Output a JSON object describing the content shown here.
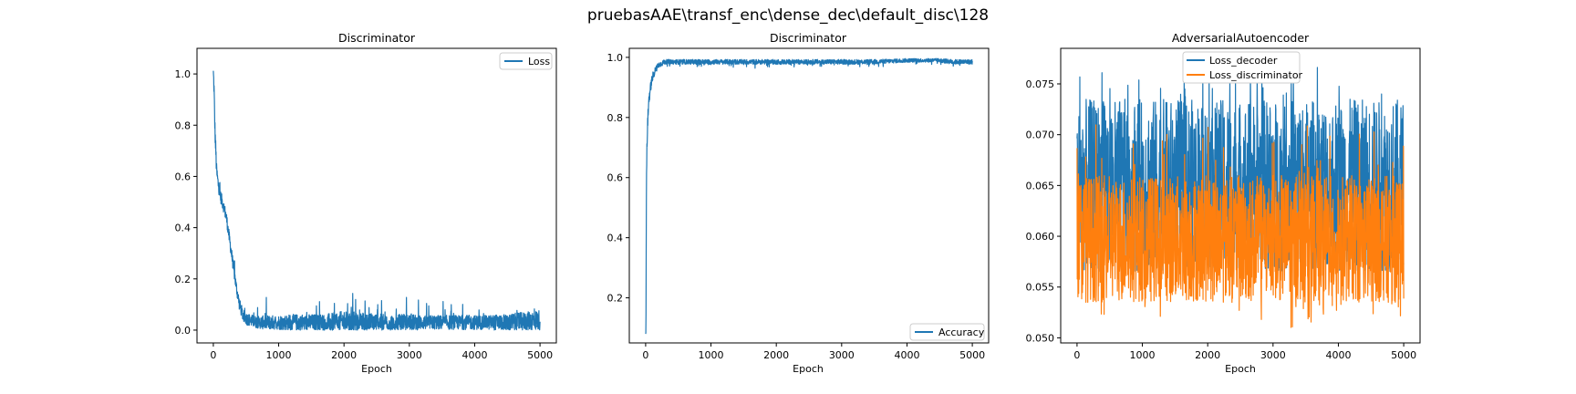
{
  "figure": {
    "suptitle": "pruebasAAE\\transf_enc\\dense_dec\\default_disc\\128"
  },
  "chart_data": [
    {
      "type": "line",
      "title": "Discriminator",
      "xlabel": "Epoch",
      "ylabel": "",
      "xlim": [
        -250,
        5250
      ],
      "ylim": [
        -0.05,
        1.1
      ],
      "xticks": [
        0,
        1000,
        2000,
        3000,
        4000,
        5000
      ],
      "yticks": [
        0.0,
        0.2,
        0.4,
        0.6,
        0.8,
        1.0
      ],
      "legend_position": "upper right",
      "grid": false,
      "series": [
        {
          "name": "Loss",
          "color": "#1f77b4",
          "x": [
            0,
            10,
            25,
            50,
            75,
            100,
            150,
            200,
            250,
            300,
            350,
            400,
            450,
            500,
            600,
            700,
            800,
            900,
            1000,
            1200,
            1400,
            1600,
            1800,
            2000,
            2200,
            2400,
            2600,
            2800,
            3000,
            3200,
            3400,
            3600,
            3800,
            4000,
            4200,
            4400,
            4600,
            4800,
            5000
          ],
          "y": [
            1.0,
            0.95,
            0.78,
            0.62,
            0.57,
            0.53,
            0.49,
            0.44,
            0.35,
            0.26,
            0.17,
            0.1,
            0.06,
            0.045,
            0.035,
            0.03,
            0.03,
            0.03,
            0.03,
            0.03,
            0.03,
            0.03,
            0.03,
            0.035,
            0.03,
            0.03,
            0.03,
            0.03,
            0.03,
            0.03,
            0.03,
            0.03,
            0.03,
            0.03,
            0.03,
            0.03,
            0.03,
            0.035,
            0.04
          ],
          "spread": [
            0.05,
            0.05,
            0.05,
            0.04,
            0.03,
            0.03,
            0.03,
            0.03,
            0.03,
            0.03,
            0.03,
            0.03,
            0.03,
            0.03,
            0.03,
            0.03,
            0.035,
            0.035,
            0.035,
            0.04,
            0.04,
            0.04,
            0.045,
            0.05,
            0.05,
            0.045,
            0.04,
            0.04,
            0.04,
            0.035,
            0.035,
            0.035,
            0.035,
            0.035,
            0.035,
            0.04,
            0.045,
            0.045,
            0.05
          ]
        }
      ]
    },
    {
      "type": "line",
      "title": "Discriminator",
      "xlabel": "Epoch",
      "ylabel": "",
      "xlim": [
        -250,
        5250
      ],
      "ylim": [
        0.05,
        1.03
      ],
      "xticks": [
        0,
        1000,
        2000,
        3000,
        4000,
        5000
      ],
      "yticks": [
        0.2,
        0.4,
        0.6,
        0.8,
        1.0
      ],
      "legend_position": "lower right",
      "grid": false,
      "series": [
        {
          "name": "Accuracy",
          "color": "#1f77b4",
          "x": [
            0,
            5,
            10,
            15,
            20,
            30,
            50,
            75,
            100,
            150,
            200,
            300,
            400,
            600,
            800,
            1000,
            1500,
            2000,
            2500,
            3000,
            3500,
            4000,
            4500,
            4700,
            5000
          ],
          "y": [
            0.08,
            0.1,
            0.5,
            0.62,
            0.7,
            0.78,
            0.86,
            0.9,
            0.93,
            0.96,
            0.975,
            0.985,
            0.985,
            0.985,
            0.985,
            0.985,
            0.985,
            0.985,
            0.985,
            0.985,
            0.985,
            0.99,
            0.99,
            0.985,
            0.985
          ],
          "spread": [
            0.0,
            0.02,
            0.05,
            0.03,
            0.03,
            0.03,
            0.03,
            0.02,
            0.02,
            0.015,
            0.012,
            0.01,
            0.01,
            0.01,
            0.01,
            0.01,
            0.01,
            0.01,
            0.01,
            0.01,
            0.01,
            0.008,
            0.008,
            0.01,
            0.01
          ]
        }
      ]
    },
    {
      "type": "line",
      "title": "AdversarialAutoencoder",
      "xlabel": "Epoch",
      "ylabel": "",
      "xlim": [
        -250,
        5250
      ],
      "ylim": [
        0.0495,
        0.0785
      ],
      "xticks": [
        0,
        1000,
        2000,
        3000,
        4000,
        5000
      ],
      "yticks": [
        0.05,
        0.055,
        0.06,
        0.065,
        0.07,
        0.075
      ],
      "legend_position": "upper center",
      "grid": false,
      "series": [
        {
          "name": "Loss_decoder",
          "color": "#1f77b4",
          "x": [
            0,
            5000
          ],
          "center": 0.0655,
          "low": 0.0565,
          "high": 0.0735,
          "peak": 0.077
        },
        {
          "name": "Loss_discriminator",
          "color": "#ff7f0e",
          "x": [
            0,
            5000
          ],
          "center": 0.06,
          "low": 0.0535,
          "high": 0.066,
          "peak": 0.071,
          "trough": 0.051
        }
      ]
    }
  ]
}
